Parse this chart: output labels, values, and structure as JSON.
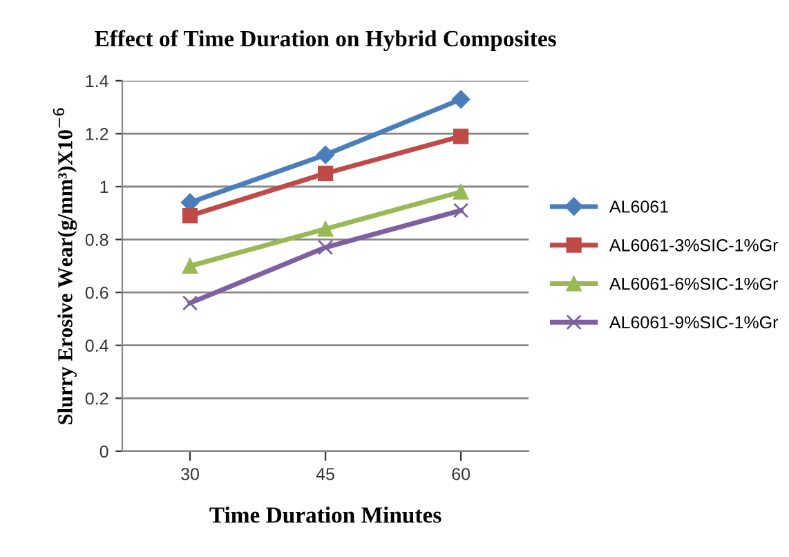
{
  "chart_data": {
    "type": "line",
    "title": "Effect of Time Duration on Hybrid Composites",
    "xlabel": "Time Duration Minutes",
    "ylabel": "Slurry Erosive Wear(g/mm³)X10$^{−6}$",
    "categories": [
      "30",
      "45",
      "60"
    ],
    "series": [
      {
        "name": "AL6061",
        "color": "#4a7ebb",
        "marker": "diamond",
        "values": [
          0.94,
          1.12,
          1.33
        ]
      },
      {
        "name": "AL6061-3%SIC-1%Gr",
        "color": "#be4b48",
        "marker": "square",
        "values": [
          0.89,
          1.05,
          1.19
        ]
      },
      {
        "name": "AL6061-6%SIC-1%Gr",
        "color": "#98b954",
        "marker": "triangle",
        "values": [
          0.7,
          0.84,
          0.98
        ]
      },
      {
        "name": "AL6061-9%SIC-1%Gr",
        "color": "#7d60a0",
        "marker": "cross",
        "values": [
          0.56,
          0.77,
          0.91
        ]
      }
    ],
    "ylim": [
      0,
      1.4
    ],
    "yticks": [
      0,
      0.2,
      0.4,
      0.6,
      0.8,
      1,
      1.2,
      1.4
    ],
    "grid": "y",
    "legend": "right",
    "line_style": "solid"
  }
}
